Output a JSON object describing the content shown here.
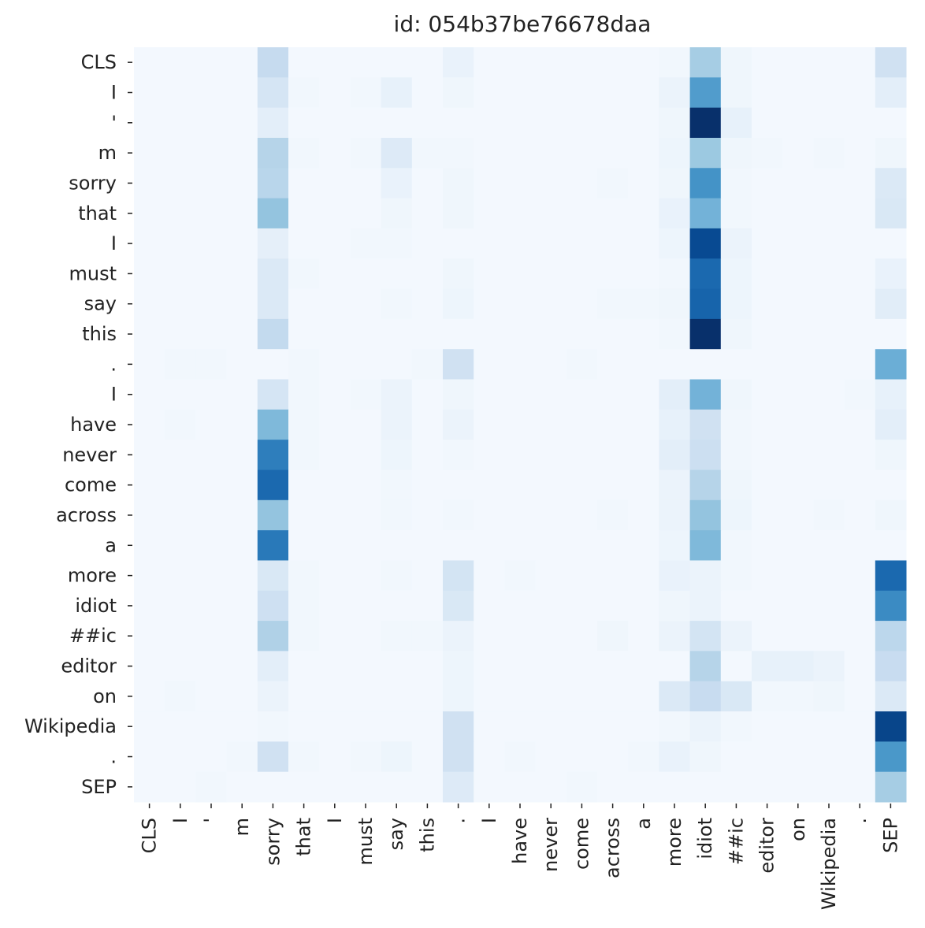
{
  "chart_data": {
    "type": "heatmap",
    "title": "id: 054b37be76678daa",
    "x_tokens": [
      "CLS",
      "I",
      "'",
      "m",
      "sorry",
      "that",
      "I",
      "must",
      "say",
      "this",
      ".",
      "I",
      "have",
      "never",
      "come",
      "across",
      "a",
      "more",
      "idiot",
      "##ic",
      "editor",
      "on",
      "Wikipedia",
      ".",
      "SEP"
    ],
    "y_tokens": [
      "CLS",
      "I",
      "'",
      "m",
      "sorry",
      "that",
      "I",
      "must",
      "say",
      "this",
      ".",
      "I",
      "have",
      "never",
      "come",
      "across",
      "a",
      "more",
      "idiot",
      "##ic",
      "editor",
      "on",
      "Wikipedia",
      ".",
      "SEP"
    ],
    "colormap": "Blues",
    "colorbar": false,
    "value_range": [
      0,
      1
    ],
    "values": [
      [
        0.02,
        0.02,
        0.02,
        0.02,
        0.25,
        0.02,
        0.02,
        0.02,
        0.02,
        0.02,
        0.07,
        0.02,
        0.02,
        0.02,
        0.02,
        0.02,
        0.02,
        0.03,
        0.35,
        0.04,
        0.02,
        0.02,
        0.02,
        0.02,
        0.2
      ],
      [
        0.02,
        0.02,
        0.02,
        0.02,
        0.17,
        0.03,
        0.02,
        0.03,
        0.08,
        0.02,
        0.04,
        0.02,
        0.02,
        0.02,
        0.02,
        0.02,
        0.02,
        0.06,
        0.58,
        0.04,
        0.02,
        0.02,
        0.02,
        0.02,
        0.1
      ],
      [
        0.02,
        0.02,
        0.02,
        0.02,
        0.1,
        0.02,
        0.02,
        0.02,
        0.02,
        0.02,
        0.02,
        0.02,
        0.02,
        0.02,
        0.02,
        0.02,
        0.02,
        0.04,
        1.0,
        0.08,
        0.02,
        0.02,
        0.02,
        0.02,
        0.02
      ],
      [
        0.02,
        0.02,
        0.02,
        0.02,
        0.3,
        0.03,
        0.02,
        0.03,
        0.13,
        0.03,
        0.03,
        0.02,
        0.02,
        0.02,
        0.02,
        0.02,
        0.02,
        0.05,
        0.38,
        0.04,
        0.03,
        0.02,
        0.03,
        0.02,
        0.04
      ],
      [
        0.02,
        0.02,
        0.02,
        0.02,
        0.29,
        0.02,
        0.02,
        0.02,
        0.07,
        0.02,
        0.04,
        0.02,
        0.02,
        0.02,
        0.02,
        0.03,
        0.02,
        0.04,
        0.62,
        0.03,
        0.02,
        0.02,
        0.02,
        0.02,
        0.14
      ],
      [
        0.02,
        0.02,
        0.02,
        0.02,
        0.4,
        0.02,
        0.02,
        0.02,
        0.04,
        0.02,
        0.04,
        0.02,
        0.02,
        0.02,
        0.02,
        0.02,
        0.02,
        0.07,
        0.48,
        0.03,
        0.02,
        0.02,
        0.02,
        0.02,
        0.15
      ],
      [
        0.02,
        0.02,
        0.02,
        0.02,
        0.09,
        0.02,
        0.02,
        0.03,
        0.03,
        0.02,
        0.02,
        0.02,
        0.02,
        0.02,
        0.02,
        0.02,
        0.02,
        0.05,
        0.9,
        0.06,
        0.02,
        0.02,
        0.02,
        0.02,
        0.02
      ],
      [
        0.02,
        0.02,
        0.02,
        0.02,
        0.14,
        0.03,
        0.02,
        0.02,
        0.02,
        0.02,
        0.04,
        0.02,
        0.02,
        0.02,
        0.02,
        0.02,
        0.02,
        0.03,
        0.78,
        0.05,
        0.02,
        0.02,
        0.02,
        0.02,
        0.07
      ],
      [
        0.02,
        0.02,
        0.02,
        0.02,
        0.14,
        0.02,
        0.02,
        0.02,
        0.03,
        0.02,
        0.05,
        0.02,
        0.02,
        0.02,
        0.02,
        0.03,
        0.03,
        0.04,
        0.8,
        0.05,
        0.02,
        0.02,
        0.02,
        0.02,
        0.11
      ],
      [
        0.02,
        0.02,
        0.02,
        0.02,
        0.26,
        0.02,
        0.02,
        0.02,
        0.02,
        0.02,
        0.02,
        0.02,
        0.02,
        0.02,
        0.02,
        0.02,
        0.02,
        0.03,
        1.0,
        0.04,
        0.02,
        0.02,
        0.02,
        0.02,
        0.02
      ],
      [
        0.02,
        0.03,
        0.03,
        0.02,
        0.02,
        0.03,
        0.02,
        0.02,
        0.02,
        0.03,
        0.2,
        0.02,
        0.02,
        0.02,
        0.03,
        0.02,
        0.02,
        0.02,
        0.02,
        0.02,
        0.02,
        0.02,
        0.02,
        0.02,
        0.5
      ],
      [
        0.02,
        0.02,
        0.02,
        0.02,
        0.17,
        0.03,
        0.02,
        0.03,
        0.06,
        0.02,
        0.04,
        0.02,
        0.02,
        0.02,
        0.02,
        0.02,
        0.02,
        0.1,
        0.48,
        0.04,
        0.02,
        0.02,
        0.02,
        0.03,
        0.08
      ],
      [
        0.02,
        0.03,
        0.02,
        0.02,
        0.45,
        0.03,
        0.02,
        0.02,
        0.06,
        0.02,
        0.06,
        0.02,
        0.02,
        0.02,
        0.02,
        0.02,
        0.02,
        0.08,
        0.2,
        0.03,
        0.02,
        0.02,
        0.02,
        0.02,
        0.1
      ],
      [
        0.02,
        0.02,
        0.02,
        0.02,
        0.7,
        0.03,
        0.02,
        0.02,
        0.05,
        0.02,
        0.03,
        0.02,
        0.02,
        0.02,
        0.02,
        0.02,
        0.02,
        0.1,
        0.22,
        0.03,
        0.02,
        0.02,
        0.02,
        0.02,
        0.04
      ],
      [
        0.02,
        0.02,
        0.02,
        0.02,
        0.78,
        0.02,
        0.02,
        0.02,
        0.03,
        0.02,
        0.02,
        0.02,
        0.02,
        0.02,
        0.02,
        0.02,
        0.02,
        0.06,
        0.3,
        0.04,
        0.02,
        0.02,
        0.02,
        0.02,
        0.02
      ],
      [
        0.02,
        0.02,
        0.02,
        0.02,
        0.4,
        0.02,
        0.02,
        0.02,
        0.03,
        0.02,
        0.03,
        0.02,
        0.02,
        0.02,
        0.02,
        0.03,
        0.02,
        0.06,
        0.4,
        0.05,
        0.02,
        0.02,
        0.03,
        0.02,
        0.04
      ],
      [
        0.02,
        0.02,
        0.02,
        0.02,
        0.72,
        0.02,
        0.02,
        0.02,
        0.02,
        0.02,
        0.02,
        0.02,
        0.02,
        0.02,
        0.02,
        0.02,
        0.02,
        0.05,
        0.45,
        0.03,
        0.02,
        0.02,
        0.02,
        0.02,
        0.02
      ],
      [
        0.02,
        0.02,
        0.02,
        0.02,
        0.15,
        0.03,
        0.02,
        0.02,
        0.03,
        0.02,
        0.18,
        0.02,
        0.03,
        0.02,
        0.02,
        0.02,
        0.02,
        0.07,
        0.06,
        0.03,
        0.02,
        0.02,
        0.02,
        0.02,
        0.78
      ],
      [
        0.02,
        0.02,
        0.02,
        0.02,
        0.21,
        0.03,
        0.02,
        0.02,
        0.02,
        0.02,
        0.15,
        0.02,
        0.02,
        0.02,
        0.02,
        0.02,
        0.02,
        0.04,
        0.06,
        0.02,
        0.02,
        0.02,
        0.02,
        0.02,
        0.65
      ],
      [
        0.02,
        0.02,
        0.02,
        0.02,
        0.32,
        0.03,
        0.02,
        0.02,
        0.03,
        0.03,
        0.06,
        0.02,
        0.02,
        0.02,
        0.02,
        0.04,
        0.02,
        0.06,
        0.18,
        0.06,
        0.02,
        0.02,
        0.02,
        0.02,
        0.28
      ],
      [
        0.02,
        0.02,
        0.02,
        0.02,
        0.1,
        0.02,
        0.02,
        0.02,
        0.02,
        0.02,
        0.05,
        0.02,
        0.02,
        0.02,
        0.02,
        0.02,
        0.02,
        0.02,
        0.3,
        0.02,
        0.08,
        0.08,
        0.06,
        0.02,
        0.24
      ],
      [
        0.02,
        0.03,
        0.02,
        0.02,
        0.06,
        0.02,
        0.02,
        0.02,
        0.02,
        0.02,
        0.05,
        0.02,
        0.02,
        0.02,
        0.02,
        0.02,
        0.02,
        0.14,
        0.24,
        0.15,
        0.03,
        0.03,
        0.04,
        0.02,
        0.14
      ],
      [
        0.02,
        0.02,
        0.02,
        0.02,
        0.03,
        0.02,
        0.02,
        0.02,
        0.02,
        0.02,
        0.2,
        0.02,
        0.02,
        0.02,
        0.02,
        0.02,
        0.02,
        0.03,
        0.06,
        0.03,
        0.02,
        0.02,
        0.02,
        0.02,
        0.92
      ],
      [
        0.02,
        0.02,
        0.02,
        0.03,
        0.2,
        0.03,
        0.02,
        0.03,
        0.05,
        0.02,
        0.2,
        0.02,
        0.03,
        0.02,
        0.02,
        0.02,
        0.03,
        0.07,
        0.04,
        0.02,
        0.02,
        0.02,
        0.02,
        0.02,
        0.6
      ],
      [
        0.02,
        0.02,
        0.03,
        0.02,
        0.02,
        0.02,
        0.02,
        0.02,
        0.02,
        0.02,
        0.13,
        0.02,
        0.02,
        0.02,
        0.03,
        0.02,
        0.02,
        0.02,
        0.02,
        0.02,
        0.02,
        0.02,
        0.02,
        0.02,
        0.35
      ]
    ]
  }
}
